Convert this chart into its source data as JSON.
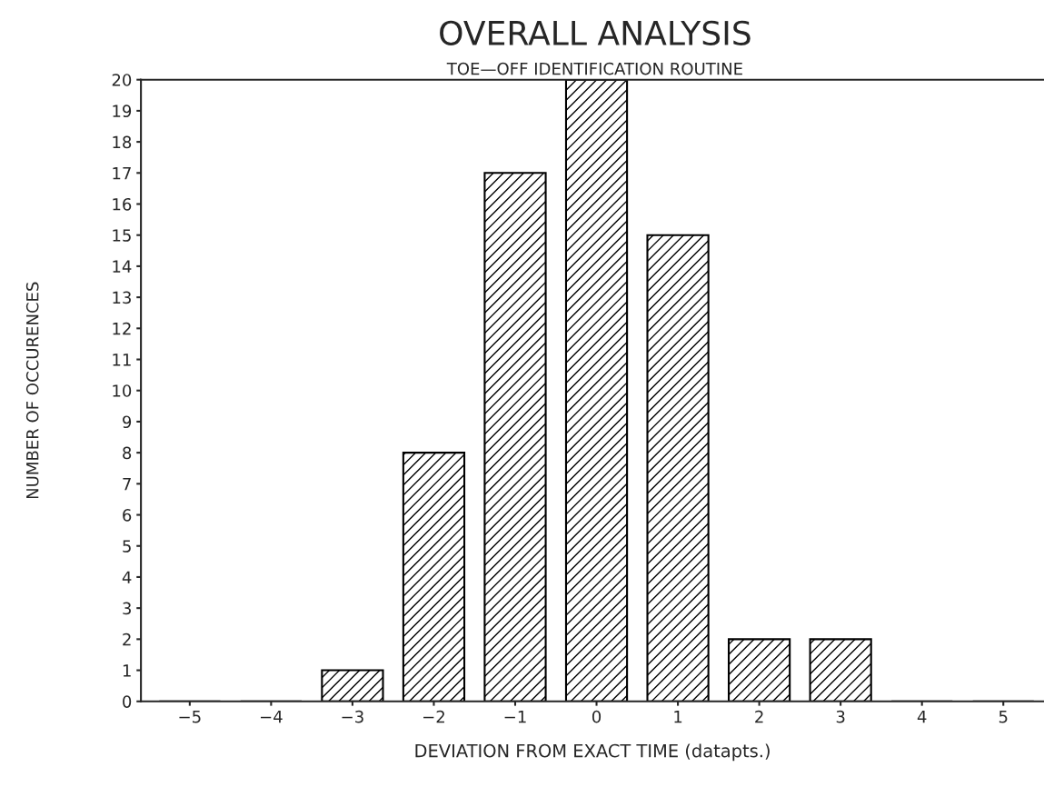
{
  "chart_data": {
    "type": "bar",
    "title": "OVERALL ANALYSIS",
    "subtitle": "TOE—OFF IDENTIFICATION ROUTINE",
    "xlabel": "DEVIATION FROM EXACT TIME (datapts.)",
    "ylabel": "NUMBER OF OCCURENCES",
    "categories": [
      "−5",
      "−4",
      "−3",
      "−2",
      "−1",
      "0",
      "1",
      "2",
      "3",
      "4",
      "5"
    ],
    "values": [
      0,
      0,
      1,
      8,
      17,
      20,
      15,
      2,
      2,
      0,
      0
    ],
    "color": "#000000",
    "ylim": [
      0,
      20
    ],
    "yticks": [
      0,
      1,
      2,
      3,
      4,
      5,
      6,
      7,
      8,
      9,
      10,
      11,
      12,
      13,
      14,
      15,
      16,
      17,
      18,
      19,
      20
    ],
    "grid": false,
    "legend": false
  }
}
